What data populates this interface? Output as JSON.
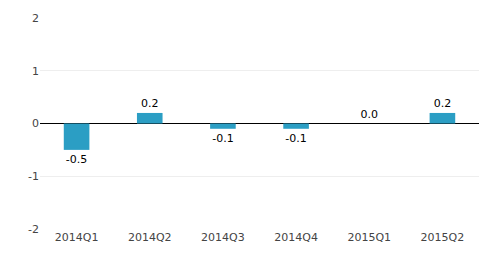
{
  "chart_data": {
    "type": "bar",
    "categories": [
      "2014Q1",
      "2014Q2",
      "2014Q3",
      "2014Q4",
      "2015Q1",
      "2015Q2"
    ],
    "values": [
      -0.5,
      0.2,
      -0.1,
      -0.1,
      0.0,
      0.2
    ],
    "value_labels": [
      "-0.5",
      "0.2",
      "-0.1",
      "-0.1",
      "0.0",
      "0.2"
    ],
    "color": "#2B9EC4",
    "ylim": [
      -2,
      2
    ],
    "yticks": [
      -2,
      -1,
      0,
      1,
      2
    ],
    "grid": true,
    "data_labels": true
  }
}
